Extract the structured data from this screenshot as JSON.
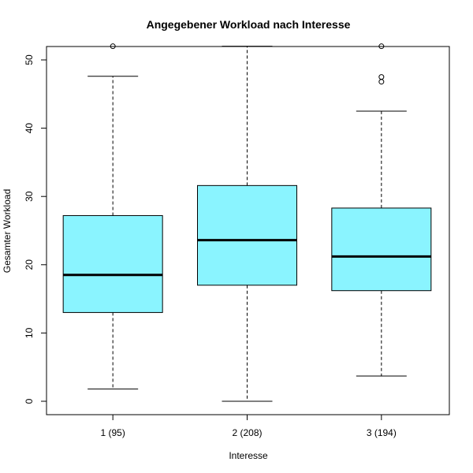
{
  "chart_data": {
    "type": "box",
    "title": "Angegebener Workload nach Interesse",
    "xlabel": "Interesse",
    "ylabel": "Gesamter Workload",
    "ylim": [
      -2,
      52
    ],
    "y_ticks": [
      0,
      10,
      20,
      30,
      40,
      50
    ],
    "grid": false,
    "box_fill": "#8AF4FF",
    "categories": [
      "1 (95)",
      "2 (208)",
      "3 (194)"
    ],
    "boxes": [
      {
        "category": "1 (95)",
        "whisker_low": 1.8,
        "q1": 13.0,
        "median": 18.5,
        "q3": 27.2,
        "whisker_high": 47.6,
        "outliers": [
          52.0
        ]
      },
      {
        "category": "2 (208)",
        "whisker_low": 0.0,
        "q1": 17.0,
        "median": 23.6,
        "q3": 31.6,
        "whisker_high": 52.0,
        "outliers": []
      },
      {
        "category": "3 (194)",
        "whisker_low": 3.7,
        "q1": 16.2,
        "median": 21.2,
        "q3": 28.3,
        "whisker_high": 42.5,
        "outliers": [
          47.5,
          46.8,
          52.0
        ]
      }
    ]
  }
}
